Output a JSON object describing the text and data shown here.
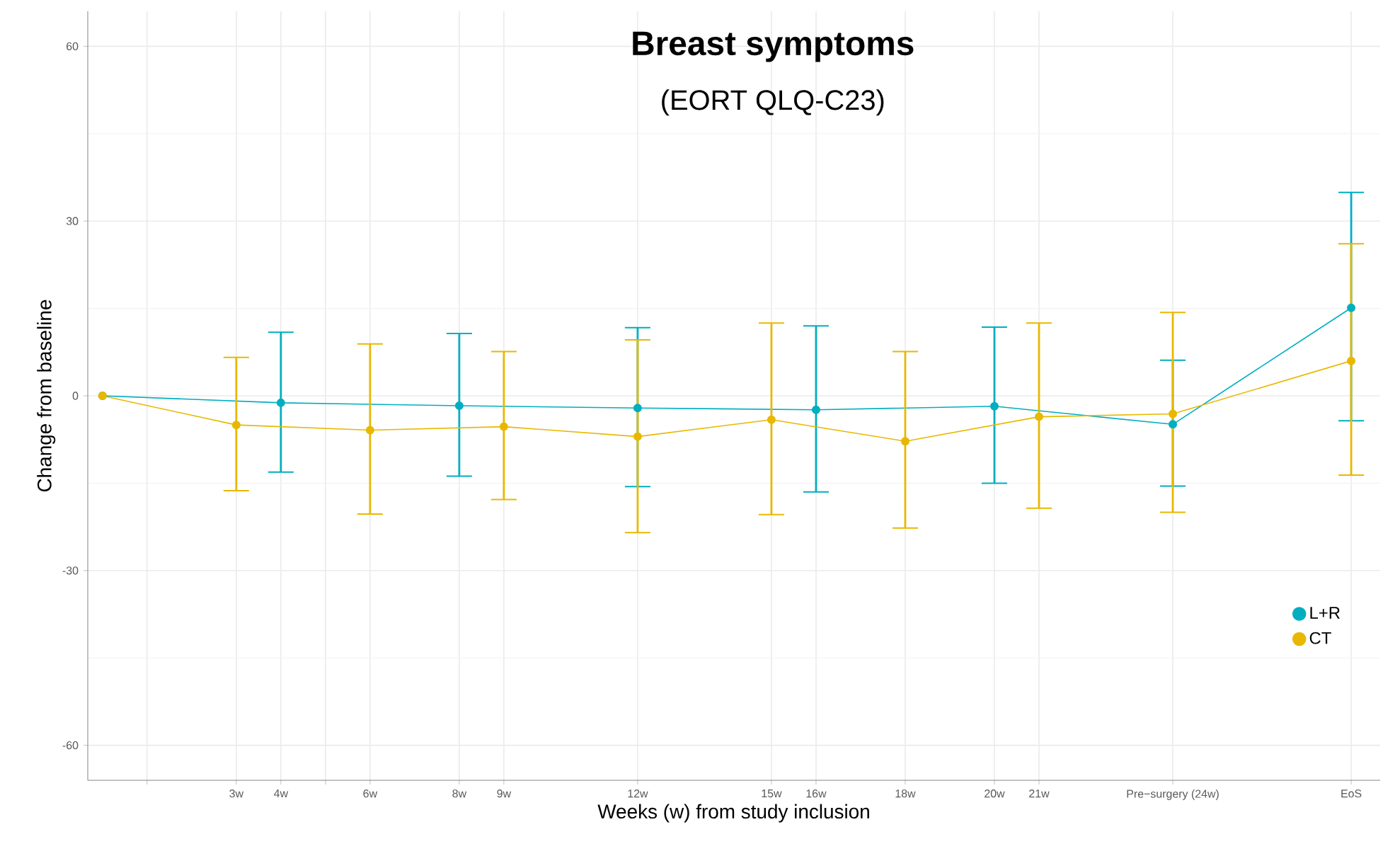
{
  "chart_data": {
    "type": "line",
    "title": "Breast symptoms",
    "subtitle": "(EORT QLQ-C23)",
    "xlabel": "Weeks (w) from study inclusion",
    "ylabel": "Change from baseline",
    "xlim": [
      -0.33,
      28.65
    ],
    "ylim": [
      -66,
      66
    ],
    "xticks": [
      {
        "value": 1,
        "label": null
      },
      {
        "value": 3,
        "label": "3w"
      },
      {
        "value": 4,
        "label": "4w"
      },
      {
        "value": 5,
        "label": null
      },
      {
        "value": 6,
        "label": "6w"
      },
      {
        "value": 8,
        "label": "8w"
      },
      {
        "value": 9,
        "label": "9w"
      },
      {
        "value": 12,
        "label": "12w"
      },
      {
        "value": 15,
        "label": "15w"
      },
      {
        "value": 16,
        "label": "16w"
      },
      {
        "value": 18,
        "label": "18w"
      },
      {
        "value": 20,
        "label": "20w"
      },
      {
        "value": 21,
        "label": "21w"
      },
      {
        "value": 24,
        "label": "Pre−surgery (24w)"
      },
      {
        "value": 28,
        "label": "EoS"
      }
    ],
    "yticks": [
      -60,
      -30,
      0,
      30,
      60
    ],
    "grid": true,
    "legend": "bottom right",
    "marker": "circle",
    "line_style": "solid",
    "series": [
      {
        "name": "L+R",
        "color": "#00aec0",
        "x": [
          0,
          4,
          8,
          12,
          16,
          20,
          24,
          28
        ],
        "values": [
          0,
          -1.2,
          -1.7,
          -2.1,
          -2.4,
          -1.8,
          -4.9,
          15.1
        ],
        "errors": [
          null,
          [
            -13.1,
            10.9
          ],
          [
            -13.8,
            10.7
          ],
          [
            -15.6,
            11.7
          ],
          [
            -16.5,
            12.0
          ],
          [
            -15.0,
            11.8
          ],
          [
            -15.5,
            6.1
          ],
          [
            -4.3,
            34.9
          ]
        ]
      },
      {
        "name": "CT",
        "color": "#e8b800",
        "x": [
          0,
          3,
          6,
          9,
          12,
          15,
          18,
          21,
          24,
          28
        ],
        "values": [
          0,
          -5.0,
          -5.9,
          -5.3,
          -7.0,
          -4.1,
          -7.8,
          -3.6,
          -3.1,
          6.0
        ],
        "errors": [
          null,
          [
            -16.3,
            6.6
          ],
          [
            -20.3,
            8.9
          ],
          [
            -17.8,
            7.6
          ],
          [
            -23.5,
            9.6
          ],
          [
            -20.4,
            12.5
          ],
          [
            -22.7,
            7.6
          ],
          [
            -19.3,
            12.5
          ],
          [
            -20.0,
            14.3
          ],
          [
            -13.6,
            26.1
          ]
        ]
      }
    ]
  }
}
